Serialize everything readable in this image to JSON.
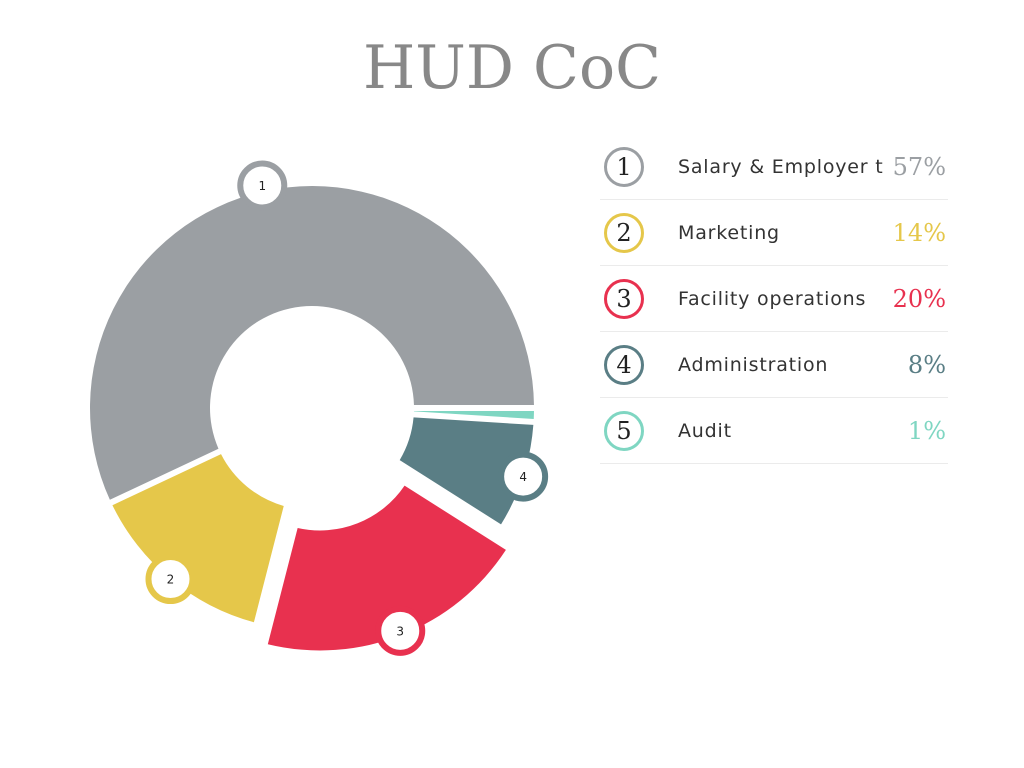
{
  "chart_data": {
    "type": "pie",
    "title": "HUD CoC",
    "categories": [
      "Salary & Employer tax",
      "Marketing",
      "Facility operations",
      "Administration",
      "Audit"
    ],
    "values": [
      57,
      14,
      20,
      8,
      1
    ],
    "value_labels": [
      "57%",
      "14%",
      "20%",
      "8%",
      "1%"
    ],
    "markers": [
      "1",
      "2",
      "3",
      "4",
      "5"
    ],
    "colors": [
      "#9b9fa3",
      "#e5c74a",
      "#e8314f",
      "#5a7e85",
      "#7fd6c2"
    ],
    "donut": true,
    "legend_position": "right"
  }
}
